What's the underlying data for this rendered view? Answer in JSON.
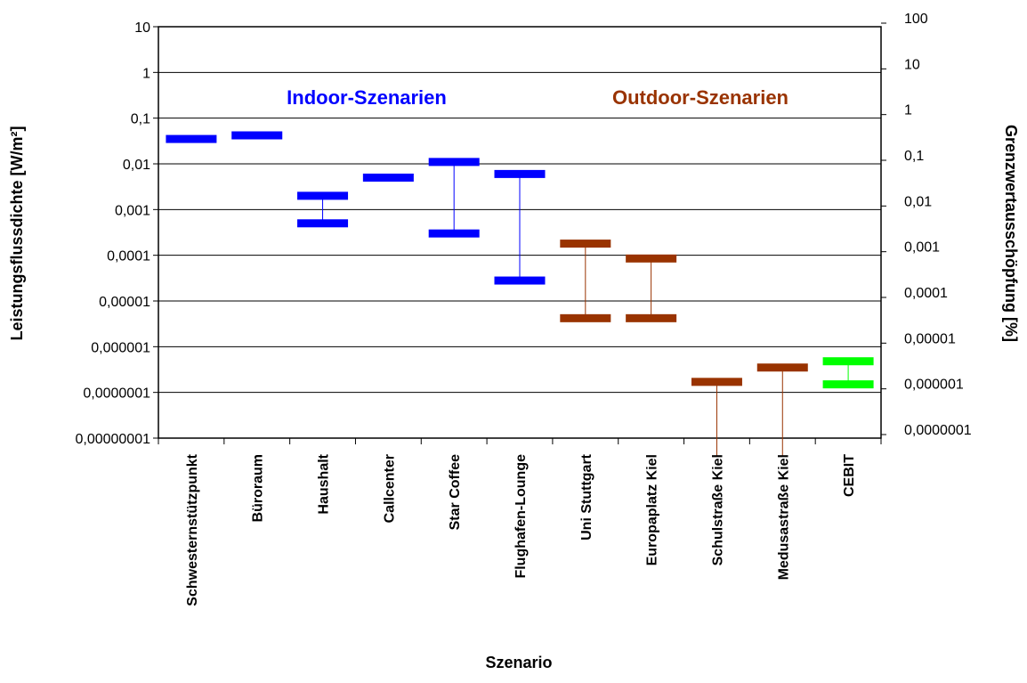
{
  "chart_data": {
    "type": "range",
    "xlabel": "Szenario",
    "ylabel": "Leistungsflussdichte [W/m²]",
    "y2label": "Grenzwertausschöpfung [%]",
    "yscale": "log",
    "ylim": [
      1e-08,
      10
    ],
    "y_ticks": [
      "10",
      "1",
      "0,1",
      "0,01",
      "0,001",
      "0,0001",
      "0,00001",
      "0,000001",
      "0,0000001",
      "0,00000001"
    ],
    "y2_ticks": [
      "100",
      "10",
      "1",
      "0,1",
      "0,01",
      "0,001",
      "0,0001",
      "0,00001",
      "0,000001",
      "0,0000001"
    ],
    "annotations": [
      {
        "text": "Indoor-Szenarien",
        "color": "#0000ff"
      },
      {
        "text": "Outdoor-Szenarien",
        "color": "#993300"
      }
    ],
    "categories": [
      "Schwesternstützpunkt",
      "Büroraum",
      "Haushalt",
      "Callcenter",
      "Star Coffee",
      "Flughafen-Lounge",
      "Uni Stuttgart",
      "Europaplatz Kiel",
      "Schulstraße Kiel",
      "Medusastraße Kiel",
      "CEBIT"
    ],
    "series": [
      {
        "group": "Indoor",
        "color": "#0000ff",
        "ranges": [
          {
            "category": "Schwesternstützpunkt",
            "min": 0.035,
            "max": 0.035
          },
          {
            "category": "Büroraum",
            "min": 0.042,
            "max": 0.042
          },
          {
            "category": "Haushalt",
            "min": 0.0005,
            "max": 0.002
          },
          {
            "category": "Callcenter",
            "min": 0.005,
            "max": 0.005
          },
          {
            "category": "Star Coffee",
            "min": 0.0003,
            "max": 0.011
          },
          {
            "category": "Flughafen-Lounge",
            "min": 2.8e-05,
            "max": 0.006
          }
        ]
      },
      {
        "group": "Outdoor",
        "color": "#993300",
        "ranges": [
          {
            "category": "Uni Stuttgart",
            "min": 4.2e-06,
            "max": 0.00018
          },
          {
            "category": "Europaplatz Kiel",
            "min": 4.2e-06,
            "max": 8.5e-05
          },
          {
            "category": "Schulstraße Kiel",
            "min": null,
            "max": 1.7e-07
          },
          {
            "category": "Medusastraße Kiel",
            "min": null,
            "max": 3.5e-07
          }
        ]
      },
      {
        "group": "CEBIT",
        "color": "#00ff00",
        "ranges": [
          {
            "category": "CEBIT",
            "min": 1.5e-07,
            "max": 4.8e-07
          }
        ]
      }
    ]
  }
}
